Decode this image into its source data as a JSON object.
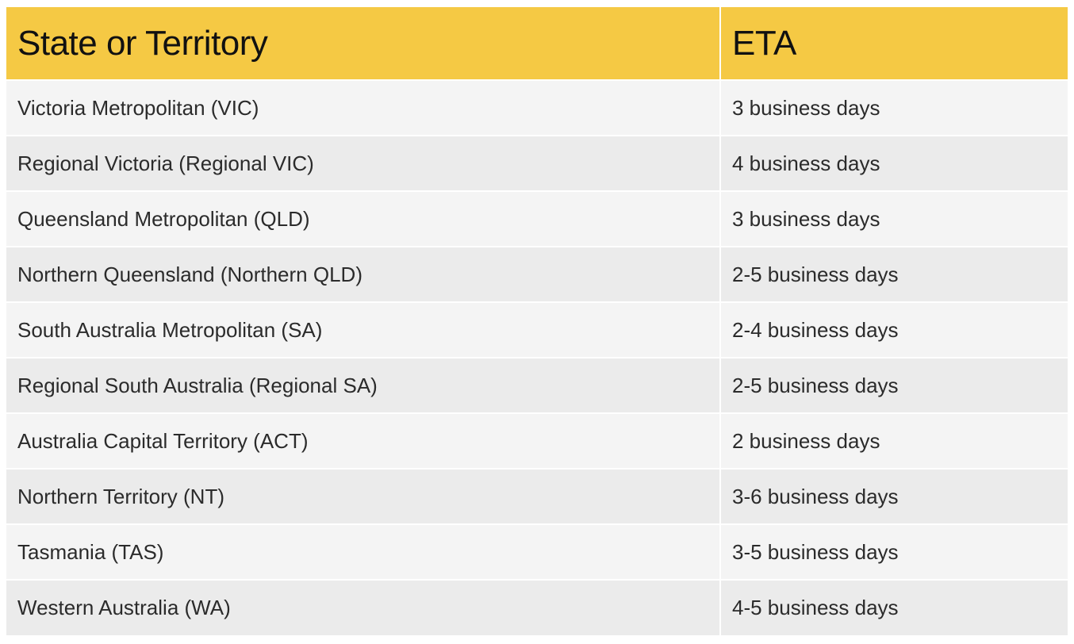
{
  "table": {
    "headers": [
      "State or Territory",
      "ETA"
    ],
    "rows": [
      [
        "Victoria Metropolitan (VIC)",
        "3 business days"
      ],
      [
        "Regional Victoria (Regional VIC)",
        "4 business days"
      ],
      [
        "Queensland Metropolitan (QLD)",
        "3 business days"
      ],
      [
        "Northern Queensland (Northern QLD)",
        "2-5 business days"
      ],
      [
        "South Australia Metropolitan (SA)",
        "2-4 business days"
      ],
      [
        "Regional South Australia (Regional SA)",
        "2-5 business days"
      ],
      [
        "Australia Capital Territory (ACT)",
        "2 business days"
      ],
      [
        "Northern Territory (NT)",
        "3-6 business days"
      ],
      [
        "Tasmania (TAS)",
        "3-5 business days"
      ],
      [
        "Western Australia (WA)",
        "4-5 business days"
      ]
    ]
  },
  "colors": {
    "header_bg": "#f5c944",
    "row_odd_bg": "#f4f4f4",
    "row_even_bg": "#ebebeb",
    "divider": "#ffffff"
  }
}
